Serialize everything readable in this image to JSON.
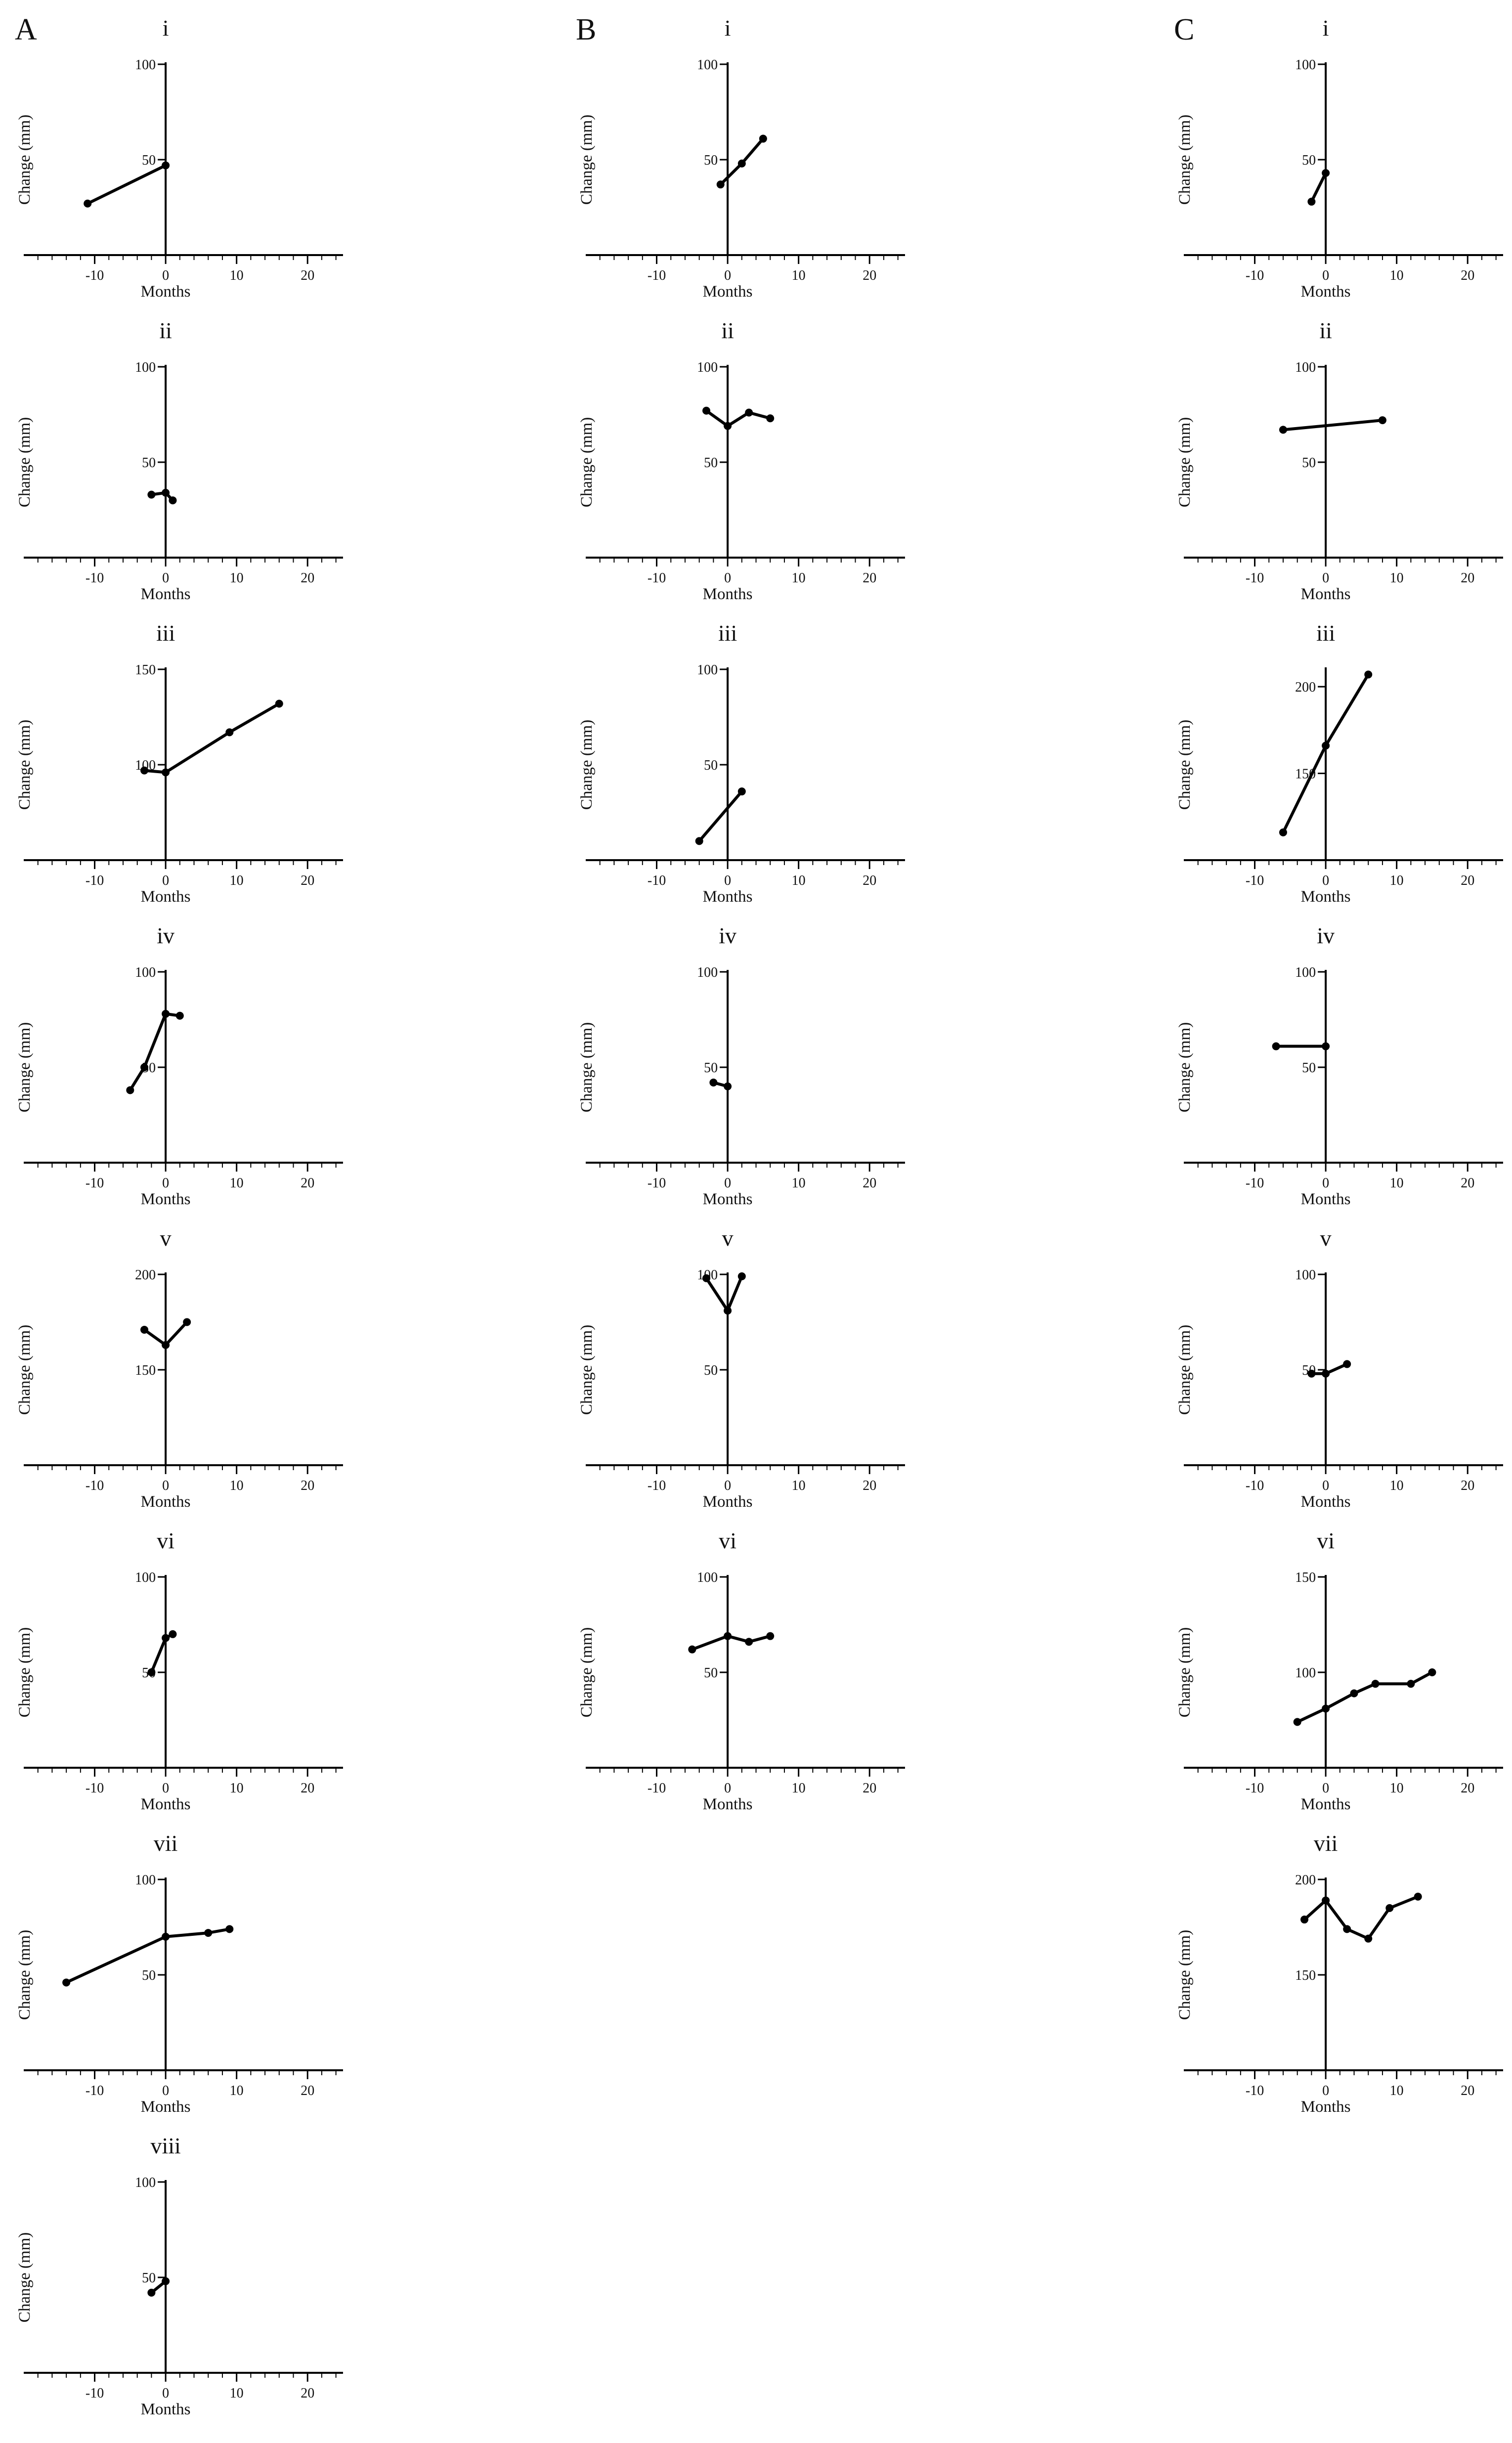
{
  "columns": [
    "A",
    "B",
    "C"
  ],
  "axis_text": {
    "xlabel": "Months",
    "ylabel": "Change (mm)",
    "xticks": [
      -10,
      0,
      10,
      20
    ]
  },
  "chart_data": [
    {
      "type": "line",
      "column": "A",
      "label": "i",
      "xlim": [
        -20,
        25
      ],
      "ylim": [
        0,
        100
      ],
      "yticks": [
        50,
        100
      ],
      "x": [
        -11,
        0
      ],
      "y": [
        27,
        47
      ]
    },
    {
      "type": "line",
      "column": "A",
      "label": "ii",
      "xlim": [
        -20,
        25
      ],
      "ylim": [
        0,
        100
      ],
      "yticks": [
        50,
        100
      ],
      "x": [
        -2,
        0,
        1
      ],
      "y": [
        33,
        34,
        30
      ]
    },
    {
      "type": "line",
      "column": "A",
      "label": "iii",
      "xlim": [
        -20,
        25
      ],
      "ylim": [
        50,
        150
      ],
      "yticks": [
        100,
        150
      ],
      "x": [
        -3,
        0,
        9,
        16
      ],
      "y": [
        97,
        96,
        117,
        132
      ]
    },
    {
      "type": "line",
      "column": "A",
      "label": "iv",
      "xlim": [
        -20,
        25
      ],
      "ylim": [
        0,
        100
      ],
      "yticks": [
        50,
        100
      ],
      "x": [
        -5,
        -3,
        0,
        2
      ],
      "y": [
        38,
        50,
        78,
        77
      ]
    },
    {
      "type": "line",
      "column": "A",
      "label": "v",
      "xlim": [
        -20,
        25
      ],
      "ylim": [
        100,
        200
      ],
      "yticks": [
        150,
        200
      ],
      "x": [
        -3,
        0,
        3
      ],
      "y": [
        171,
        163,
        175
      ]
    },
    {
      "type": "line",
      "column": "A",
      "label": "vi",
      "xlim": [
        -20,
        25
      ],
      "ylim": [
        0,
        100
      ],
      "yticks": [
        50,
        100
      ],
      "x": [
        -2,
        0,
        1
      ],
      "y": [
        50,
        68,
        70
      ]
    },
    {
      "type": "line",
      "column": "A",
      "label": "vii",
      "xlim": [
        -20,
        25
      ],
      "ylim": [
        0,
        100
      ],
      "yticks": [
        50,
        100
      ],
      "x": [
        -14,
        0,
        6,
        9
      ],
      "y": [
        46,
        70,
        72,
        74
      ]
    },
    {
      "type": "line",
      "column": "A",
      "label": "viii",
      "xlim": [
        -20,
        25
      ],
      "ylim": [
        0,
        100
      ],
      "yticks": [
        50,
        100
      ],
      "x": [
        -2,
        0
      ],
      "y": [
        42,
        48
      ]
    },
    {
      "type": "line",
      "column": "B",
      "label": "i",
      "xlim": [
        -20,
        25
      ],
      "ylim": [
        0,
        100
      ],
      "yticks": [
        50,
        100
      ],
      "x": [
        -1,
        2,
        5
      ],
      "y": [
        37,
        48,
        61
      ]
    },
    {
      "type": "line",
      "column": "B",
      "label": "ii",
      "xlim": [
        -20,
        25
      ],
      "ylim": [
        0,
        100
      ],
      "yticks": [
        50,
        100
      ],
      "x": [
        -3,
        0,
        3,
        6
      ],
      "y": [
        77,
        69,
        76,
        73
      ]
    },
    {
      "type": "line",
      "column": "B",
      "label": "iii",
      "xlim": [
        -20,
        25
      ],
      "ylim": [
        0,
        100
      ],
      "yticks": [
        50,
        100
      ],
      "x": [
        -4,
        2
      ],
      "y": [
        10,
        36
      ]
    },
    {
      "type": "line",
      "column": "B",
      "label": "iv",
      "xlim": [
        -20,
        25
      ],
      "ylim": [
        0,
        100
      ],
      "yticks": [
        50,
        100
      ],
      "x": [
        -2,
        0
      ],
      "y": [
        42,
        40
      ]
    },
    {
      "type": "line",
      "column": "B",
      "label": "v",
      "xlim": [
        -20,
        25
      ],
      "ylim": [
        0,
        100
      ],
      "yticks": [
        50,
        100
      ],
      "x": [
        -3,
        0,
        2
      ],
      "y": [
        98,
        81,
        99
      ]
    },
    {
      "type": "line",
      "column": "B",
      "label": "vi",
      "xlim": [
        -20,
        25
      ],
      "ylim": [
        0,
        100
      ],
      "yticks": [
        50,
        100
      ],
      "x": [
        -5,
        0,
        3,
        6
      ],
      "y": [
        62,
        69,
        66,
        69
      ]
    },
    {
      "type": "line",
      "column": "C",
      "label": "i",
      "xlim": [
        -20,
        25
      ],
      "ylim": [
        0,
        100
      ],
      "yticks": [
        50,
        100
      ],
      "x": [
        -2,
        0
      ],
      "y": [
        28,
        43
      ]
    },
    {
      "type": "line",
      "column": "C",
      "label": "ii",
      "xlim": [
        -20,
        25
      ],
      "ylim": [
        0,
        100
      ],
      "yticks": [
        50,
        100
      ],
      "x": [
        -6,
        8
      ],
      "y": [
        67,
        72
      ]
    },
    {
      "type": "line",
      "column": "C",
      "label": "iii",
      "xlim": [
        -20,
        25
      ],
      "ylim": [
        100,
        210
      ],
      "yticks": [
        150,
        200
      ],
      "x": [
        -6,
        0,
        6
      ],
      "y": [
        116,
        166,
        207
      ]
    },
    {
      "type": "line",
      "column": "C",
      "label": "iv",
      "xlim": [
        -20,
        25
      ],
      "ylim": [
        0,
        100
      ],
      "yticks": [
        50,
        100
      ],
      "x": [
        -7,
        0
      ],
      "y": [
        61,
        61
      ]
    },
    {
      "type": "line",
      "column": "C",
      "label": "v",
      "xlim": [
        -20,
        25
      ],
      "ylim": [
        0,
        100
      ],
      "yticks": [
        50,
        100
      ],
      "x": [
        -2,
        0,
        3
      ],
      "y": [
        48,
        48,
        53
      ]
    },
    {
      "type": "line",
      "column": "C",
      "label": "vi",
      "xlim": [
        -20,
        25
      ],
      "ylim": [
        50,
        150
      ],
      "yticks": [
        100,
        150
      ],
      "x": [
        -4,
        0,
        4,
        7,
        12,
        15
      ],
      "y": [
        74,
        81,
        89,
        94,
        94,
        100
      ]
    },
    {
      "type": "line",
      "column": "C",
      "label": "vii",
      "xlim": [
        -20,
        25
      ],
      "ylim": [
        100,
        200
      ],
      "yticks": [
        150,
        200
      ],
      "x": [
        -3,
        0,
        3,
        6,
        9,
        13
      ],
      "y": [
        179,
        189,
        174,
        169,
        185,
        191
      ]
    }
  ]
}
